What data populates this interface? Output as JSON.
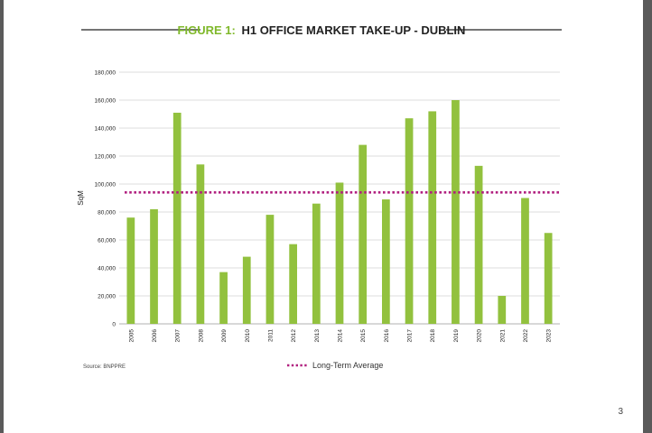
{
  "page": {
    "page_number": "3"
  },
  "colors": {
    "bar": "#92c13e",
    "figure_label": "#7fb82a",
    "average_line": "#b1207f",
    "grid": "#d3d3d3",
    "text": "#222222"
  },
  "chart_data": {
    "type": "bar",
    "figure_label": "FIGURE 1:",
    "title": "H1 OFFICE MARKET TAKE-UP - DUBLIN",
    "xlabel": "",
    "ylabel": "SqM",
    "ylim": [
      0,
      180000
    ],
    "yticks": [
      0,
      20000,
      40000,
      60000,
      80000,
      100000,
      120000,
      140000,
      160000,
      180000
    ],
    "ytick_labels": [
      "0",
      "20,000",
      "40,000",
      "60,000",
      "80,000",
      "100,000",
      "120,000",
      "140,000",
      "160,000",
      "180,000"
    ],
    "categories": [
      "2005",
      "2006",
      "2007",
      "2008",
      "2009",
      "2010",
      "2011",
      "2012",
      "2013",
      "2014",
      "2015",
      "2016",
      "2017",
      "2018",
      "2019",
      "2020",
      "2021",
      "2022",
      "2023"
    ],
    "values": [
      76000,
      82000,
      151000,
      114000,
      37000,
      48000,
      78000,
      57000,
      86000,
      101000,
      128000,
      89000,
      147000,
      152000,
      160000,
      113000,
      20000,
      90000,
      65000
    ],
    "long_term_average": 94000,
    "legend": {
      "label": "Long-Term Average",
      "placement": "bottom-center"
    },
    "source": "Source: BNPPRE"
  }
}
